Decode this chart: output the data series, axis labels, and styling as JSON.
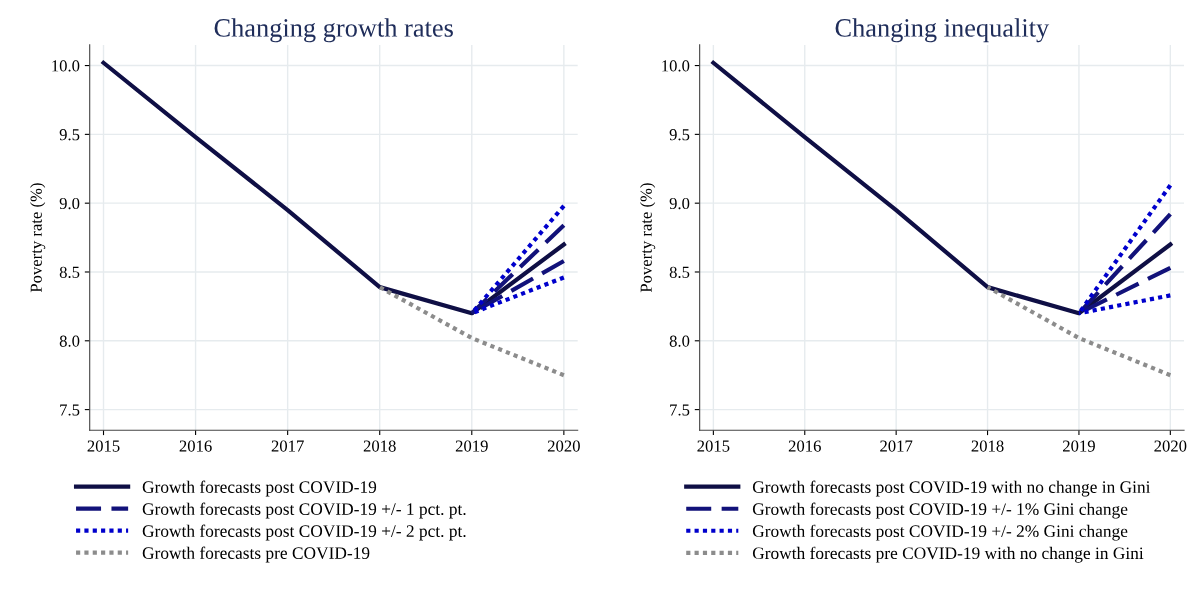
{
  "chart_data": [
    {
      "type": "line",
      "title": "Changing growth rates",
      "ylabel": "Poverty rate (%)",
      "x": [
        2015,
        2016,
        2017,
        2018,
        2019,
        2020
      ],
      "xlim": [
        2014.85,
        2020.15
      ],
      "ylim": [
        7.35,
        10.15
      ],
      "xticks": [
        2015,
        2016,
        2017,
        2018,
        2019,
        2020
      ],
      "yticks": [
        {
          "value": 7.5,
          "label": "7.5"
        },
        {
          "value": 8,
          "label": "8.0"
        },
        {
          "value": 8.5,
          "label": "8.5"
        },
        {
          "value": 9,
          "label": "9.0"
        },
        {
          "value": 9.5,
          "label": "9.5"
        },
        {
          "value": 10,
          "label": "10.0"
        }
      ],
      "grid": true,
      "legend": "bottom",
      "series": [
        {
          "name": "Growth forecasts post COVID-19",
          "color": "#0f0f45",
          "line_style": "solid",
          "values": [
            10.02,
            9.48,
            8.95,
            8.39,
            8.2,
            8.7
          ]
        },
        {
          "name": "Growth forecasts post COVID-19 +/- 1 pct. pt.",
          "color": "#12127a",
          "line_style": "dashed",
          "values": [
            null,
            null,
            null,
            null,
            8.2,
            8.84
          ]
        },
        {
          "color": "#12127a",
          "line_style": "dashed",
          "values": [
            null,
            null,
            null,
            null,
            8.2,
            8.58
          ]
        },
        {
          "name": "Growth forecasts post COVID-19 +/- 2 pct. pt.",
          "color": "#0000cc",
          "line_style": "dotted",
          "values": [
            null,
            null,
            null,
            null,
            8.2,
            8.98
          ]
        },
        {
          "color": "#0000cc",
          "line_style": "dotted",
          "values": [
            null,
            null,
            null,
            null,
            8.2,
            8.46
          ]
        },
        {
          "name": "Growth forecasts pre COVID-19",
          "color": "#8c8c8c",
          "line_style": "dotted",
          "values": [
            null,
            null,
            null,
            8.39,
            8.02,
            7.75
          ]
        }
      ]
    },
    {
      "type": "line",
      "title": "Changing inequality",
      "ylabel": "Poverty rate (%)",
      "x": [
        2015,
        2016,
        2017,
        2018,
        2019,
        2020
      ],
      "xlim": [
        2014.85,
        2020.15
      ],
      "ylim": [
        7.35,
        10.15
      ],
      "xticks": [
        2015,
        2016,
        2017,
        2018,
        2019,
        2020
      ],
      "yticks": [
        {
          "value": 7.5,
          "label": "7.5"
        },
        {
          "value": 8,
          "label": "8.0"
        },
        {
          "value": 8.5,
          "label": "8.5"
        },
        {
          "value": 9,
          "label": "9.0"
        },
        {
          "value": 9.5,
          "label": "9.5"
        },
        {
          "value": 10,
          "label": "10.0"
        }
      ],
      "grid": true,
      "legend": "bottom",
      "series": [
        {
          "name": "Growth forecasts post COVID-19 with no change in Gini",
          "color": "#0f0f45",
          "line_style": "solid",
          "values": [
            10.02,
            9.48,
            8.95,
            8.39,
            8.2,
            8.7
          ]
        },
        {
          "name": "Growth forecasts post COVID-19 +/- 1% Gini change",
          "color": "#12127a",
          "line_style": "dashed",
          "values": [
            null,
            null,
            null,
            null,
            8.2,
            8.92
          ]
        },
        {
          "color": "#12127a",
          "line_style": "dashed",
          "values": [
            null,
            null,
            null,
            null,
            8.2,
            8.53
          ]
        },
        {
          "name": "Growth forecasts post COVID-19 +/- 2% Gini change",
          "color": "#0000cc",
          "line_style": "dotted",
          "values": [
            null,
            null,
            null,
            null,
            8.2,
            9.13
          ]
        },
        {
          "color": "#0000cc",
          "line_style": "dotted",
          "values": [
            null,
            null,
            null,
            null,
            8.2,
            8.33
          ]
        },
        {
          "name": "Growth forecasts pre COVID-19 with no change in Gini",
          "color": "#8c8c8c",
          "line_style": "dotted",
          "values": [
            null,
            null,
            null,
            8.39,
            8.02,
            7.75
          ]
        }
      ]
    }
  ]
}
